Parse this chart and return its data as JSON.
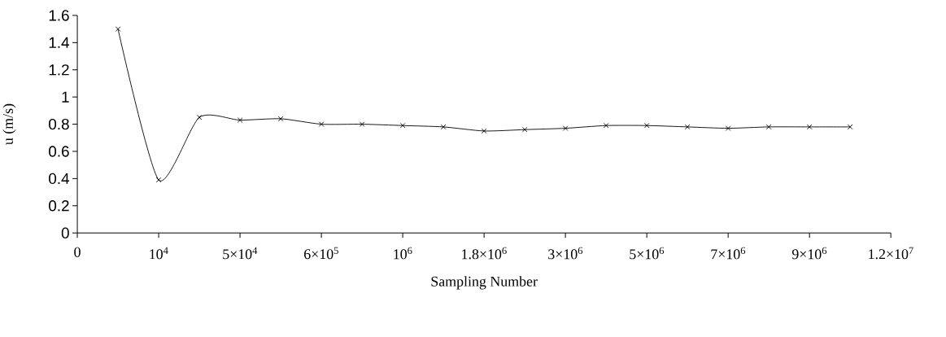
{
  "chart_data": {
    "type": "line",
    "xlabel": "Sampling Number",
    "ylabel": "u (m/s)",
    "categories": [
      "0",
      null,
      "10$^{4}$",
      null,
      "5×10$^{4}$",
      null,
      "6×10$^{5}$",
      null,
      "10$^{6}$",
      null,
      "1.8×10$^{6}$",
      null,
      "3×10$^{6}$",
      null,
      "5×10$^{6}$",
      null,
      "7×10$^{6}$",
      null,
      "9×10$^{6}$",
      null,
      "1.2×10$^{7}$"
    ],
    "series": [
      {
        "color": "#000000",
        "values": [
          null,
          1.5,
          0.39,
          0.85,
          0.83,
          0.84,
          0.8,
          0.8,
          0.79,
          0.78,
          0.75,
          0.76,
          0.77,
          0.79,
          0.79,
          0.78,
          0.77,
          0.78,
          0.78,
          0.78,
          null
        ]
      }
    ],
    "ylim": [
      0,
      1.6
    ],
    "yticks": [
      0,
      0.2,
      0.4,
      0.6,
      0.8,
      1,
      1.2,
      1.4,
      1.6
    ],
    "marker": "cross",
    "line_style": "solid"
  }
}
